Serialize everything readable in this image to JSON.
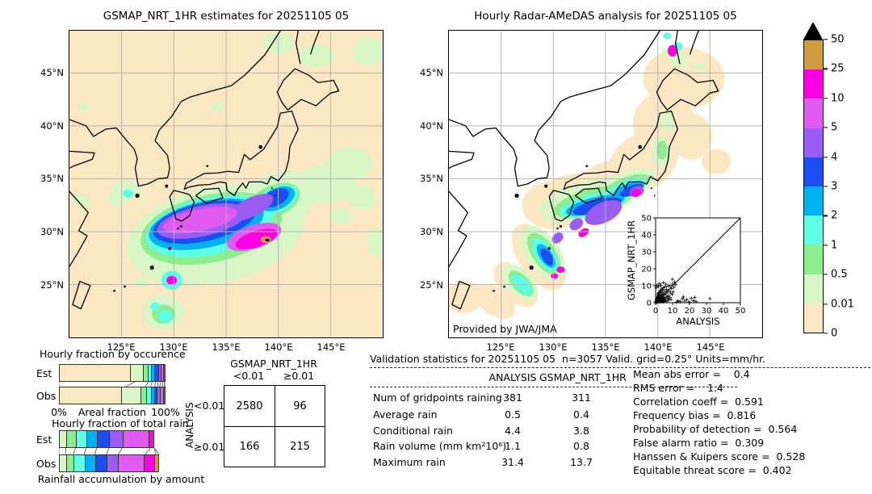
{
  "palette": {
    "peach": "#fbe7c2",
    "palegreen": "#d9f7c6",
    "green": "#8cee8e",
    "cyan": "#5fffe7",
    "deepsky": "#00b2f2",
    "blue": "#1b4df0",
    "purple": "#9a5cf2",
    "orchid": "#e25bf0",
    "magenta": "#ff00e4",
    "tan": "#d09c40",
    "grid": "#b5b5b5"
  },
  "chart_data": [
    {
      "type": "heatmap",
      "id": "gsmap-map",
      "title": "GSMAP_NRT_1HR estimates for 20251105 05",
      "xticks": [
        "125°E",
        "130°E",
        "135°E",
        "140°E",
        "145°E"
      ],
      "yticks": [
        "45°N",
        "40°N",
        "35°N",
        "30°N",
        "25°N"
      ],
      "units": "mm/hr"
    },
    {
      "type": "heatmap",
      "id": "radar-map",
      "title": "Hourly Radar-AMeDAS analysis for 20251105 05",
      "xticks": [
        "125°E",
        "130°E",
        "135°E",
        "140°E",
        "145°E"
      ],
      "yticks": [
        "45°N",
        "40°N",
        "35°N",
        "30°N",
        "25°N"
      ],
      "credit": "Provided by JWA/JMA",
      "units": "mm/hr"
    },
    {
      "type": "heatmap",
      "id": "colorbar-scale",
      "labels": [
        "50",
        "25",
        "10",
        "5",
        "4",
        "3",
        "2",
        "1",
        "0.5",
        "0.01",
        "0"
      ],
      "levels": [
        50,
        25,
        10,
        5,
        4,
        3,
        2,
        1,
        0.5,
        0.01,
        0
      ],
      "colors": [
        "tan",
        "magenta",
        "orchid",
        "purple",
        "blue",
        "deepsky",
        "cyan",
        "green",
        "palegreen",
        "peach"
      ],
      "units": "mm/hr"
    },
    {
      "type": "bar",
      "id": "hourly-fraction-by-occurrence",
      "title": "Hourly fraction by occurence",
      "xlabel": "Areal fraction",
      "x_min_label": "0%",
      "x_max_label": "100%",
      "unit": "%",
      "colors": [
        "peach",
        "palegreen",
        "green",
        "cyan",
        "deepsky",
        "blue",
        "purple",
        "orchid",
        "magenta"
      ],
      "bins": [
        0,
        0.01,
        0.5,
        1,
        2,
        3,
        4,
        5,
        10
      ],
      "series": [
        {
          "name": "Est",
          "values": [
            71.5,
            12.5,
            3.5,
            3,
            2.5,
            2.5,
            2,
            1.5,
            1
          ]
        },
        {
          "name": "Obs",
          "values": [
            62.5,
            18.5,
            5,
            4,
            2.5,
            2,
            2.5,
            2,
            1
          ]
        }
      ]
    },
    {
      "type": "bar",
      "id": "hourly-fraction-of-total-rain",
      "title": "Hourly fraction of total rain",
      "caption": "Rainfall accumulation by amount",
      "unit": "%",
      "colors": [
        "palegreen",
        "green",
        "cyan",
        "deepsky",
        "blue",
        "purple",
        "orchid",
        "magenta",
        "tan"
      ],
      "bins": [
        0.01,
        0.5,
        1,
        2,
        3,
        4,
        5,
        10,
        25
      ],
      "series": [
        {
          "name": "Est",
          "values": [
            6.5,
            9,
            10,
            10,
            11.5,
            12.5,
            26,
            4,
            0
          ]
        },
        {
          "name": "Obs",
          "values": [
            6.5,
            7,
            10,
            10,
            11,
            11,
            25.5,
            10,
            3
          ]
        }
      ]
    },
    {
      "type": "table",
      "id": "contingency",
      "title": "GSMAP_NRT_1HR",
      "row_axis": "ANALYSIS",
      "col_labels": [
        "<0.01",
        "≥0.01"
      ],
      "row_labels": [
        "<0.01",
        "≥0.01"
      ],
      "cells": [
        [
          "2580",
          "96"
        ],
        [
          "166",
          "215"
        ]
      ]
    },
    {
      "type": "table",
      "id": "validation-stats",
      "title": "Validation statistics for 20251105 05  n=3057 Valid. grid=0.25° Units=mm/hr.",
      "col_headers": [
        "ANALYSIS",
        "GSMAP_NRT_1HR"
      ],
      "rows": [
        {
          "label": "Num of gridpoints raining",
          "analysis": "381",
          "gsmap": "311"
        },
        {
          "label": "Average rain",
          "analysis": "0.5",
          "gsmap": "0.4"
        },
        {
          "label": "Conditional rain",
          "analysis": "4.4",
          "gsmap": "3.8"
        },
        {
          "label": "Rain volume (mm km²10⁶)",
          "analysis": "1.1",
          "gsmap": "0.8"
        },
        {
          "label": "Maximum rain",
          "analysis": "31.4",
          "gsmap": "13.7"
        }
      ],
      "side": [
        "Mean abs error =    0.4",
        "RMS error =    1.4",
        "Correlation coeff =  0.591",
        "Frequency bias =  0.816",
        "Probability of detection =  0.564",
        "False alarm ratio =  0.309",
        "Hanssen & Kuipers score =  0.528",
        "Equitable threat score =  0.402"
      ]
    },
    {
      "type": "scatter",
      "id": "inset-scatter",
      "xlabel": "ANALYSIS",
      "ylabel": "GSMAP_NRT_1HR",
      "xlim": [
        0,
        50
      ],
      "ylim": [
        0,
        50
      ],
      "ticks": [
        0,
        10,
        20,
        30,
        40,
        50
      ],
      "diagonal": true,
      "points": [
        [
          0.2,
          0.2
        ],
        [
          0.3,
          0.6
        ],
        [
          0.4,
          1.5
        ],
        [
          0.5,
          0.3
        ],
        [
          0.6,
          2.2
        ],
        [
          0.7,
          0.9
        ],
        [
          0.8,
          3.1
        ],
        [
          0.9,
          1.7
        ],
        [
          1.0,
          0.4
        ],
        [
          1.1,
          2.6
        ],
        [
          1.2,
          5.2
        ],
        [
          1.3,
          1.1
        ],
        [
          1.4,
          3.6
        ],
        [
          1.5,
          0.7
        ],
        [
          1.6,
          2.0
        ],
        [
          1.7,
          4.4
        ],
        [
          1.8,
          1.4
        ],
        [
          1.9,
          6.1
        ],
        [
          2.0,
          0.5
        ],
        [
          2.1,
          2.9
        ],
        [
          2.2,
          5.6
        ],
        [
          2.3,
          1.8
        ],
        [
          2.4,
          3.3
        ],
        [
          2.5,
          0.9
        ],
        [
          2.6,
          7.2
        ],
        [
          2.7,
          2.4
        ],
        [
          2.8,
          4.8
        ],
        [
          2.9,
          1.2
        ],
        [
          3.0,
          3.9
        ],
        [
          3.1,
          0.6
        ],
        [
          3.2,
          6.6
        ],
        [
          3.3,
          2.1
        ],
        [
          3.4,
          8.1
        ],
        [
          3.5,
          1.6
        ],
        [
          3.6,
          4.2
        ],
        [
          3.7,
          0.8
        ],
        [
          3.8,
          5.9
        ],
        [
          3.9,
          2.7
        ],
        [
          4.0,
          1.3
        ],
        [
          4.1,
          7.6
        ],
        [
          4.2,
          3.4
        ],
        [
          4.3,
          0.5
        ],
        [
          4.4,
          5.1
        ],
        [
          4.5,
          2.2
        ],
        [
          4.6,
          8.8
        ],
        [
          4.7,
          1.9
        ],
        [
          4.8,
          4.6
        ],
        [
          4.9,
          0.7
        ],
        [
          5.0,
          3.0
        ],
        [
          5.2,
          6.8
        ],
        [
          5.4,
          1.5
        ],
        [
          5.6,
          9.4
        ],
        [
          5.8,
          2.8
        ],
        [
          6.0,
          5.3
        ],
        [
          6.2,
          1.0
        ],
        [
          6.4,
          7.9
        ],
        [
          6.6,
          3.7
        ],
        [
          6.8,
          0.9
        ],
        [
          7.0,
          6.2
        ],
        [
          7.2,
          2.5
        ],
        [
          7.4,
          9.8
        ],
        [
          7.6,
          4.1
        ],
        [
          7.8,
          1.7
        ],
        [
          8.0,
          7.1
        ],
        [
          8.2,
          3.2
        ],
        [
          8.5,
          10.2
        ],
        [
          8.8,
          5.7
        ],
        [
          9.1,
          2.0
        ],
        [
          9.4,
          8.4
        ],
        [
          9.7,
          4.9
        ],
        [
          10.0,
          11.0
        ],
        [
          10.4,
          6.4
        ],
        [
          10.8,
          9.1
        ],
        [
          11.2,
          12.1
        ],
        [
          11.8,
          10.6
        ],
        [
          0.4,
          8.9
        ],
        [
          0.9,
          10.4
        ],
        [
          1.6,
          9.6
        ],
        [
          2.4,
          11.3
        ],
        [
          3.1,
          10.1
        ],
        [
          4.6,
          11.8
        ],
        [
          6.1,
          10.9
        ],
        [
          9.9,
          13.8
        ],
        [
          12.5,
          0.4
        ],
        [
          13.2,
          1.1
        ],
        [
          14.5,
          0.6
        ],
        [
          15.8,
          2.3
        ],
        [
          16.4,
          3.4
        ],
        [
          17.1,
          0.9
        ],
        [
          18.4,
          1.8
        ],
        [
          19.7,
          0.5
        ],
        [
          21.0,
          2.6
        ],
        [
          22.3,
          1.3
        ],
        [
          23.1,
          3.1
        ],
        [
          23.8,
          0.7
        ],
        [
          32.0,
          2.4
        ]
      ]
    }
  ]
}
